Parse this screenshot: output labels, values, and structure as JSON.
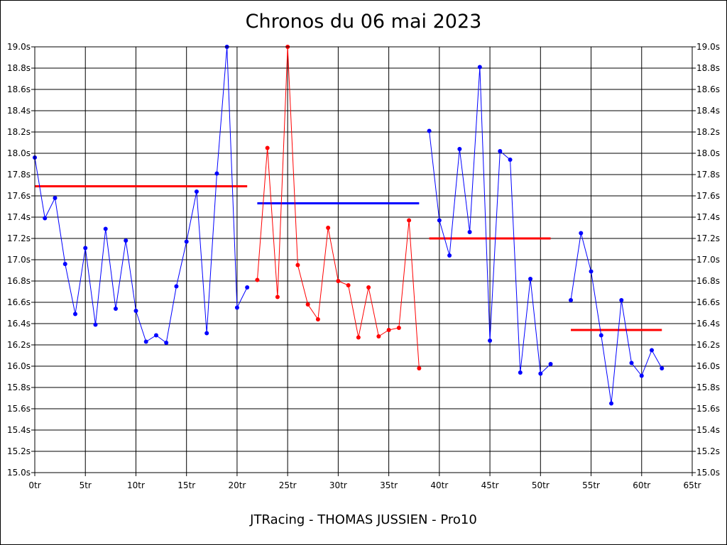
{
  "chart_data": {
    "type": "line",
    "title": "Chronos du 06 mai 2023",
    "subtitle": "JTRacing - THOMAS JUSSIEN - Pro10",
    "xlim": [
      0,
      65
    ],
    "ylim": [
      15.0,
      19.0
    ],
    "grid": true,
    "x_ticks": [
      "0tr",
      "5tr",
      "10tr",
      "15tr",
      "20tr",
      "25tr",
      "30tr",
      "35tr",
      "40tr",
      "45tr",
      "50tr",
      "55tr",
      "60tr",
      "65tr"
    ],
    "y_ticks": [
      "15.0s",
      "15.2s",
      "15.4s",
      "15.6s",
      "15.8s",
      "16.0s",
      "16.2s",
      "16.4s",
      "16.6s",
      "16.8s",
      "17.0s",
      "17.2s",
      "17.4s",
      "17.6s",
      "17.8s",
      "18.0s",
      "18.2s",
      "18.4s",
      "18.6s",
      "18.8s",
      "19.0s"
    ],
    "series": [
      {
        "color": "#0000ff",
        "points": [
          [
            0,
            17.96
          ],
          [
            1,
            17.39
          ],
          [
            2,
            17.58
          ],
          [
            3,
            16.96
          ],
          [
            4,
            16.49
          ],
          [
            5,
            17.11
          ],
          [
            6,
            16.39
          ],
          [
            7,
            17.29
          ],
          [
            8,
            16.54
          ],
          [
            9,
            17.18
          ],
          [
            10,
            16.52
          ],
          [
            11,
            16.23
          ],
          [
            12,
            16.29
          ],
          [
            13,
            16.22
          ],
          [
            14,
            16.75
          ],
          [
            15,
            17.17
          ],
          [
            16,
            17.64
          ],
          [
            17,
            16.31
          ],
          [
            18,
            17.81
          ],
          [
            19,
            19.0
          ],
          [
            20,
            16.55
          ],
          [
            21,
            16.74
          ]
        ]
      },
      {
        "color": "#ff0000",
        "points": [
          [
            22,
            16.81
          ],
          [
            23,
            18.05
          ],
          [
            24,
            16.65
          ],
          [
            25,
            19.0
          ],
          [
            26,
            16.95
          ],
          [
            27,
            16.58
          ],
          [
            28,
            16.44
          ],
          [
            29,
            17.3
          ],
          [
            30,
            16.8
          ],
          [
            31,
            16.76
          ],
          [
            32,
            16.27
          ],
          [
            33,
            16.74
          ],
          [
            34,
            16.28
          ],
          [
            35,
            16.34
          ],
          [
            36,
            16.36
          ],
          [
            37,
            17.37
          ],
          [
            38,
            15.98
          ]
        ]
      },
      {
        "color": "#0000ff",
        "points": [
          [
            39,
            18.21
          ],
          [
            40,
            17.37
          ],
          [
            41,
            17.04
          ],
          [
            42,
            18.04
          ],
          [
            43,
            17.26
          ],
          [
            44,
            18.81
          ],
          [
            45,
            16.24
          ],
          [
            46,
            18.02
          ],
          [
            47,
            17.94
          ],
          [
            48,
            15.94
          ],
          [
            49,
            16.82
          ],
          [
            50,
            15.93
          ],
          [
            51,
            16.02
          ]
        ]
      },
      {
        "color": "#0000ff",
        "points": [
          [
            53,
            16.62
          ],
          [
            54,
            17.25
          ],
          [
            55,
            16.89
          ],
          [
            56,
            16.29
          ],
          [
            57,
            15.65
          ],
          [
            58,
            16.62
          ],
          [
            59,
            16.03
          ],
          [
            60,
            15.91
          ],
          [
            61,
            16.15
          ],
          [
            62,
            15.98
          ]
        ]
      }
    ],
    "averages": [
      {
        "color": "#ff0000",
        "x": [
          0,
          21
        ],
        "y": 17.69
      },
      {
        "color": "#0000ff",
        "x": [
          22,
          38
        ],
        "y": 17.53
      },
      {
        "color": "#ff0000",
        "x": [
          39,
          51
        ],
        "y": 17.2
      },
      {
        "color": "#ff0000",
        "x": [
          53,
          62
        ],
        "y": 16.34
      }
    ]
  }
}
